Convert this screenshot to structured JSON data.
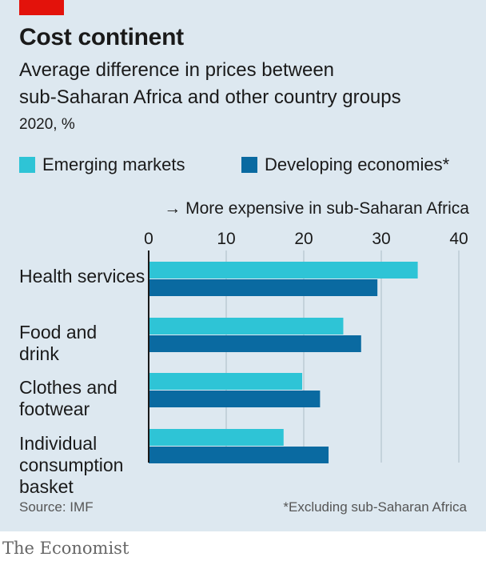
{
  "header": {
    "title": "Cost continent",
    "subtitle_line1": "Average difference in prices between",
    "subtitle_line2": "sub-Saharan Africa and other country groups",
    "units": "2020, %"
  },
  "legend": [
    {
      "label": "Emerging markets",
      "color": "#2ec4d6"
    },
    {
      "label": "Developing economies*",
      "color": "#0a6aa1"
    }
  ],
  "annotation": "→ More expensive in sub-Saharan Africa",
  "footer": {
    "source": "Source: IMF",
    "footnote": "*Excluding sub-Saharan Africa",
    "brand": "The Economist"
  },
  "colors": {
    "background": "#dde8f0",
    "accent_tag": "#e3120b",
    "gridline": "#b7c6d0",
    "axis": "#1a1a1a"
  },
  "chart_data": {
    "type": "bar",
    "orientation": "horizontal",
    "title": "Cost continent",
    "categories": [
      [
        "Health services"
      ],
      [
        "Food and",
        "drink"
      ],
      [
        "Clothes and",
        "footwear"
      ],
      [
        "Individual",
        "consumption",
        "basket"
      ]
    ],
    "series": [
      {
        "name": "Emerging markets",
        "values": [
          34.7,
          25.1,
          19.8,
          17.4
        ]
      },
      {
        "name": "Developing economies*",
        "values": [
          29.5,
          27.4,
          22.1,
          23.2
        ]
      }
    ],
    "xlim": [
      0,
      40
    ],
    "xticks": [
      0,
      10,
      20,
      30,
      40
    ],
    "grid": true,
    "legend_position": "top-left"
  }
}
